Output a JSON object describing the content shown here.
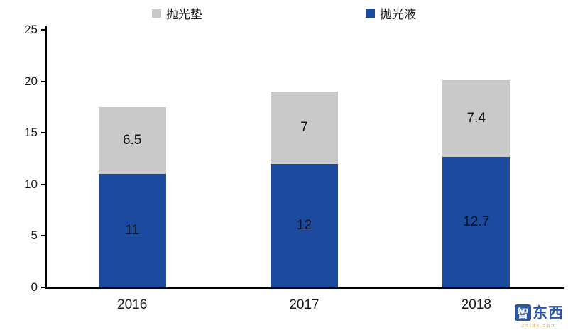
{
  "chart_data": {
    "type": "bar",
    "stacked": true,
    "categories": [
      "2016",
      "2017",
      "2018"
    ],
    "series": [
      {
        "name": "抛光液",
        "color": "#1b4a9e",
        "values": [
          11,
          12,
          12.7
        ]
      },
      {
        "name": "抛光垫",
        "color": "#c9c9c9",
        "values": [
          6.5,
          7,
          7.4
        ]
      }
    ],
    "title": "",
    "xlabel": "",
    "ylabel": "",
    "ylim": [
      0,
      25
    ],
    "yticks": [
      0,
      5,
      10,
      15,
      20,
      25
    ],
    "grid": false,
    "legend_position": "top",
    "data_labels": true
  },
  "legend": {
    "items": [
      {
        "label": "抛光垫",
        "color": "#c9c9c9"
      },
      {
        "label": "抛光液",
        "color": "#1b4a9e"
      }
    ]
  },
  "axis": {
    "tick_labels": [
      "0",
      "5",
      "10",
      "15",
      "20",
      "25"
    ]
  },
  "watermark": {
    "logo_char": "智",
    "title": "东西",
    "subtitle": "zhidx.com",
    "color": "#2b56a7",
    "subtitle_color": "#e8a23d"
  }
}
